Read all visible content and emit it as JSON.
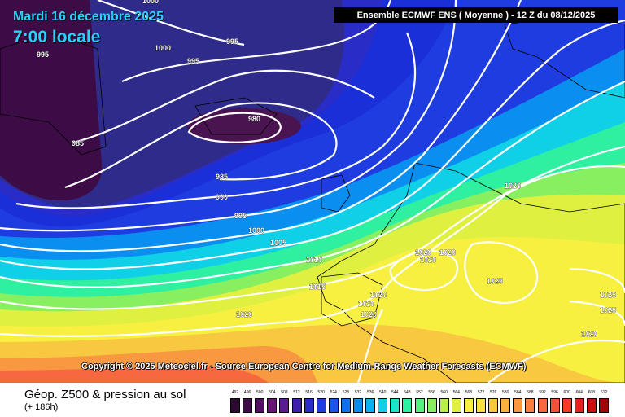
{
  "header": {
    "date": "Mardi 16 décembre 2025",
    "time": "7:00 locale",
    "run": "Ensemble ECMWF ENS  ( Moyenne )  -  12 Z du 08/12/2025"
  },
  "footer": {
    "title": "Géop. Z500 & pression au sol",
    "subtitle": "(+ 186h)",
    "copyright": "Copyright © 2025 Meteociel.fr - Source European Centre for Medium-Range Weather Forecasts (ECMWF)"
  },
  "legend": {
    "values": [
      "492",
      "496",
      "500",
      "504",
      "508",
      "512",
      "516",
      "520",
      "524",
      "528",
      "532",
      "536",
      "540",
      "544",
      "548",
      "552",
      "556",
      "560",
      "564",
      "568",
      "572",
      "576",
      "580",
      "584",
      "588",
      "592",
      "596",
      "600",
      "604",
      "608",
      "612"
    ],
    "colors": [
      "#2a0a2e",
      "#3d0b45",
      "#520e5e",
      "#6a1478",
      "#5a1a90",
      "#3b20a8",
      "#2a2cc8",
      "#1f3ce0",
      "#1a55f0",
      "#1070f0",
      "#0a8ff0",
      "#0ab0f0",
      "#10d0e8",
      "#18e8c8",
      "#2ef0a0",
      "#58f080",
      "#88f060",
      "#b8f048",
      "#e0f040",
      "#f8f040",
      "#f8e040",
      "#f8c840",
      "#f8b040",
      "#f89840",
      "#f88040",
      "#f86840",
      "#f85038",
      "#f83828",
      "#e82020",
      "#c81010",
      "#a00808"
    ]
  },
  "map": {
    "isobar_labels": [
      "1000",
      "995",
      "995",
      "1000",
      "995",
      "980",
      "985",
      "985",
      "990",
      "995",
      "1000",
      "1005",
      "1010",
      "1015",
      "1020",
      "1020",
      "1020",
      "1020",
      "1020",
      "1020",
      "1025",
      "1025",
      "1025",
      "1020",
      "1020",
      "1020"
    ]
  }
}
